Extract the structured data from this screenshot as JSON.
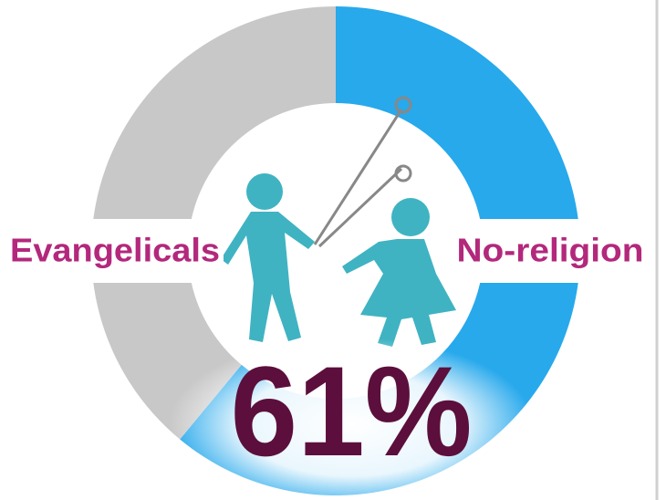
{
  "chart_data": {
    "type": "pie",
    "categories": [
      "Evangelicals",
      "No-religion"
    ],
    "values": [
      39,
      61
    ],
    "value_labels": [
      null,
      "61%"
    ],
    "colors": [
      "#c8c8c8",
      "#27a9ec"
    ],
    "start": "top",
    "direction": "clockwise",
    "donut": true
  }
}
